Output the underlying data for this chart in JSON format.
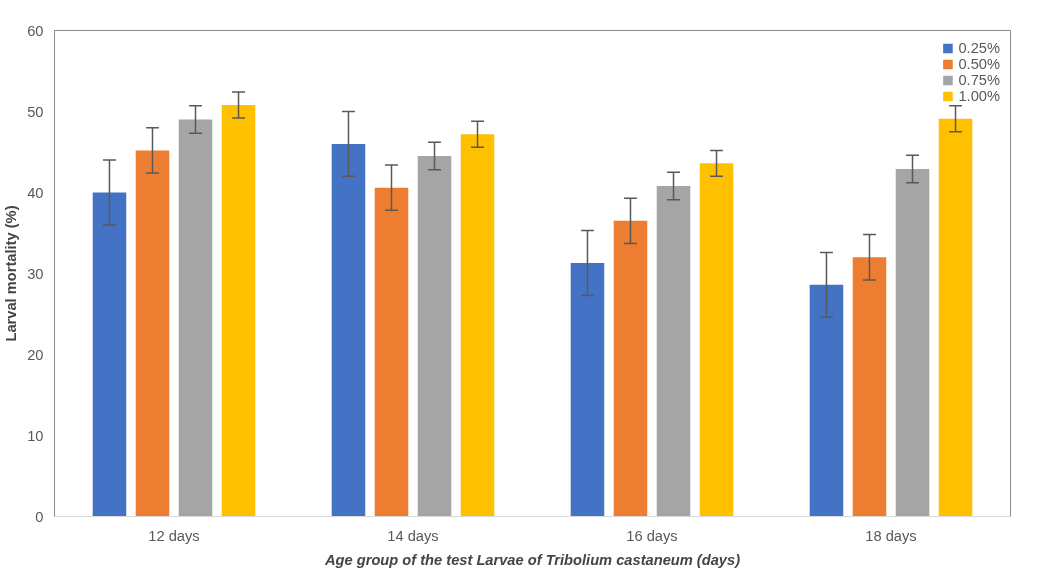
{
  "chart_data": {
    "type": "bar",
    "xlabel": "Age group of the test Larvae of Tribolium castaneum (days)",
    "ylabel": "Larval mortality (%)",
    "categories": [
      "12 days",
      "14 days",
      "16 days",
      "18 days"
    ],
    "series": [
      {
        "name": "0.25%",
        "color": "#4472c4",
        "values": [
          40,
          46,
          31.3,
          28.6
        ],
        "errors": [
          4,
          4,
          4,
          4
        ]
      },
      {
        "name": "0.50%",
        "color": "#ed7d31",
        "values": [
          45.2,
          40.6,
          36.5,
          32
        ],
        "errors": [
          2.8,
          2.8,
          2.8,
          2.8
        ]
      },
      {
        "name": "0.75%",
        "color": "#a5a5a5",
        "values": [
          49,
          44.5,
          40.8,
          42.9
        ],
        "errors": [
          1.7,
          1.7,
          1.7,
          1.7
        ]
      },
      {
        "name": "1.00%",
        "color": "#ffc000",
        "values": [
          50.8,
          47.2,
          43.6,
          49.1
        ],
        "errors": [
          1.6,
          1.6,
          1.6,
          1.6
        ]
      }
    ],
    "ylim": [
      0,
      60
    ],
    "yticks": [
      0,
      10,
      20,
      30,
      40,
      50,
      60
    ],
    "grid": false,
    "legend": "top right"
  }
}
